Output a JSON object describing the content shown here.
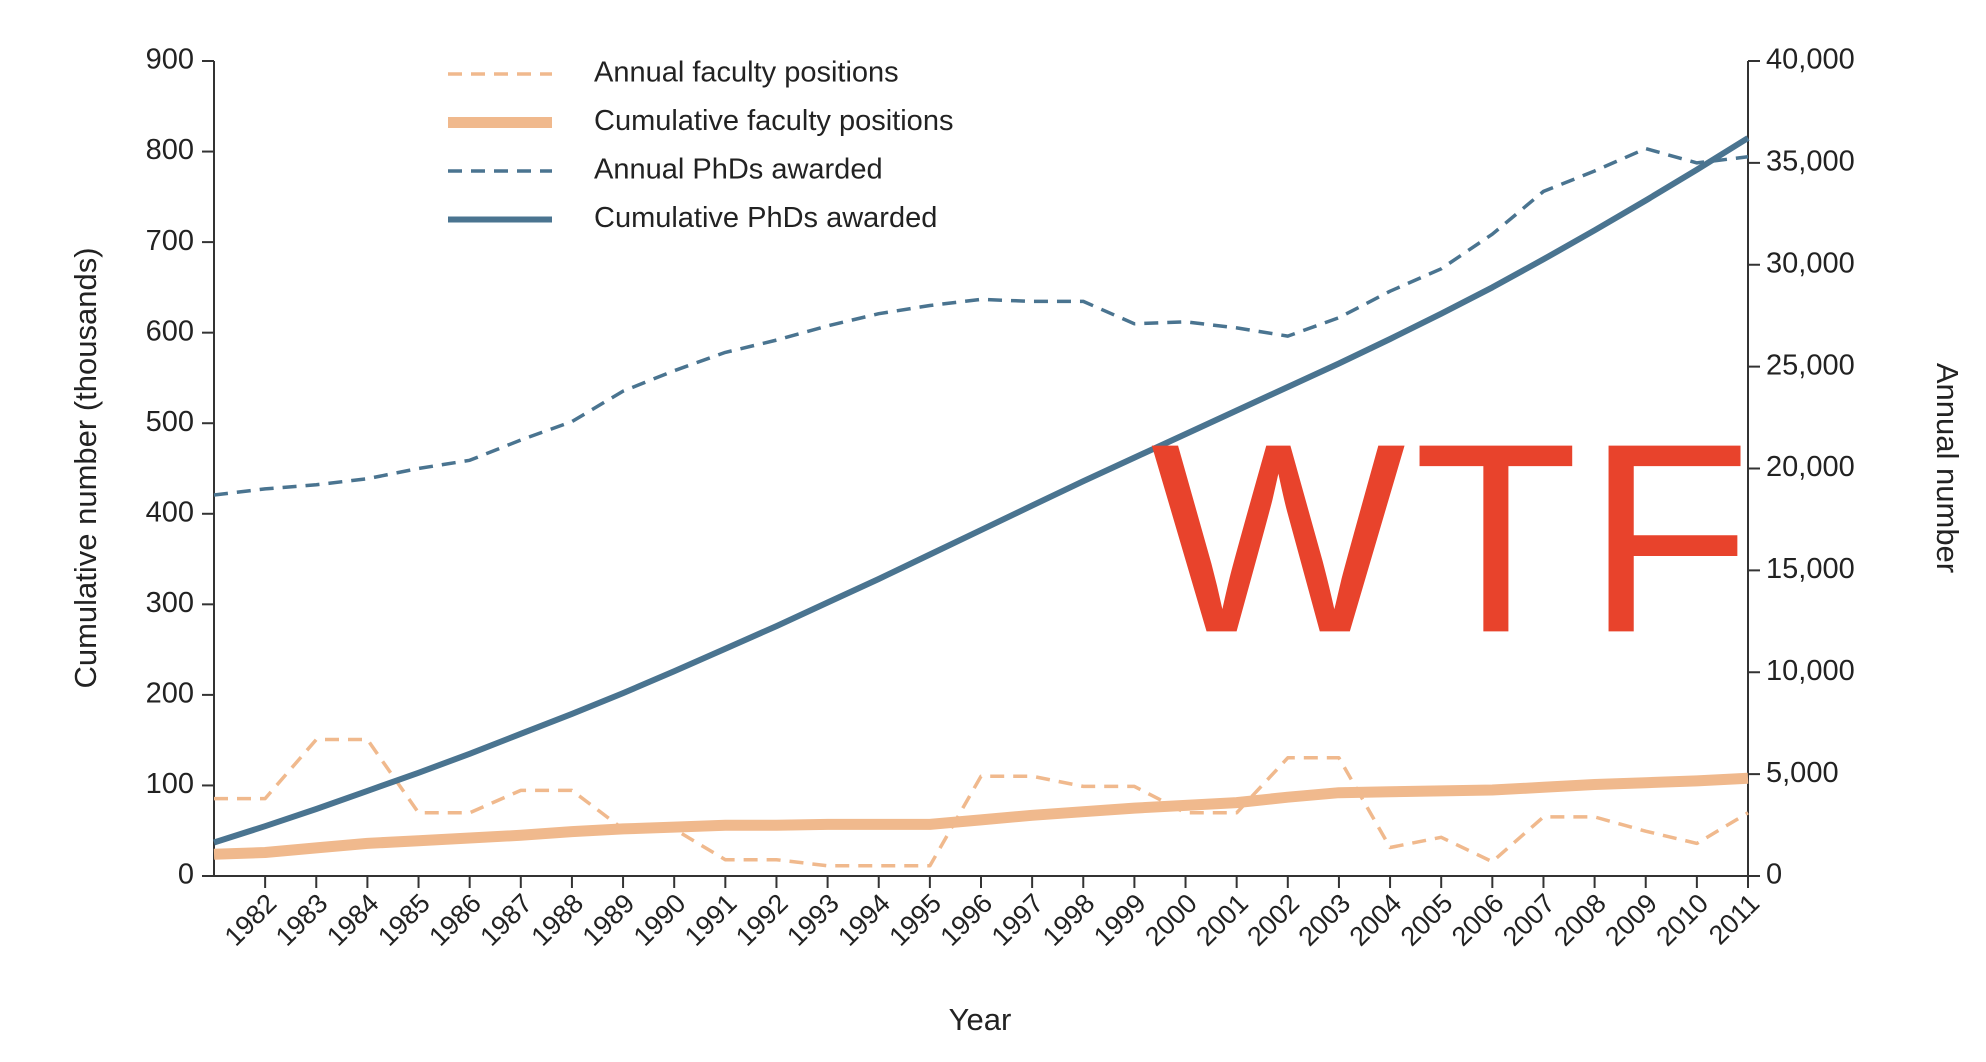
{
  "chart_data": {
    "type": "line",
    "x_label": "Year",
    "y_label": "Cumulative number (thousands)",
    "y2_label": "Annual number",
    "annotation": "WTF",
    "annotation_color": "#e8432c",
    "categories": [
      null,
      "1982",
      "1983",
      "1984",
      "1985",
      "1986",
      "1987",
      "1988",
      "1989",
      "1990",
      "1991",
      "1992",
      "1993",
      "1994",
      "1995",
      "1996",
      "1997",
      "1998",
      "1999",
      "2000",
      "2001",
      "2002",
      "2003",
      "2004",
      "2005",
      "2006",
      "2007",
      "2008",
      "2009",
      "2010",
      "2011"
    ],
    "ylim": [
      0,
      900
    ],
    "yticks": [
      0,
      100,
      200,
      300,
      400,
      500,
      600,
      700,
      800,
      900
    ],
    "y2lim": [
      0,
      40000
    ],
    "y2ticks": [
      0,
      {
        "value": 5000,
        "label": "5,000"
      },
      {
        "value": 10000,
        "label": "10,000"
      },
      {
        "value": 15000,
        "label": "15,000"
      },
      {
        "value": 20000,
        "label": "20,000"
      },
      {
        "value": 25000,
        "label": "25,000"
      },
      {
        "value": 30000,
        "label": "30,000"
      },
      {
        "value": 35000,
        "label": "35,000"
      },
      {
        "value": 40000,
        "label": "40,000"
      }
    ],
    "grid": false,
    "legend": "top-left",
    "series": [
      {
        "name": "Annual faculty positions",
        "color": "#f0b98d",
        "style": "dashed",
        "axis": "y2",
        "values": [
          3800,
          3800,
          6700,
          6700,
          3100,
          3100,
          4200,
          4200,
          2300,
          2300,
          800,
          800,
          500,
          500,
          500,
          4900,
          4900,
          4400,
          4400,
          3100,
          3100,
          5800,
          5800,
          1400,
          1900,
          700,
          2900,
          2900,
          2200,
          1600,
          3100
        ]
      },
      {
        "name": "Cumulative faculty positions",
        "color": "#f0b98d",
        "style": "solid",
        "values": [
          24,
          26,
          31,
          36,
          39,
          42,
          45,
          49,
          52,
          54,
          56,
          56,
          57,
          57,
          57,
          62,
          67,
          71,
          75,
          78,
          81,
          87,
          92,
          93,
          94,
          95,
          98,
          101,
          103,
          105,
          108
        ]
      },
      {
        "name": "Annual PhDs awarded",
        "color": "#4a7490",
        "style": "dashed",
        "axis": "y2",
        "values": [
          18700,
          19000,
          19200,
          19500,
          20000,
          20400,
          21400,
          22300,
          23800,
          24800,
          25700,
          26300,
          27000,
          27600,
          28000,
          28300,
          28200,
          28200,
          27100,
          27200,
          26900,
          26500,
          27400,
          28700,
          29800,
          31500,
          33600,
          34600,
          35700,
          35000,
          35300
        ]
      },
      {
        "name": "Cumulative PhDs awarded",
        "color": "#4a7490",
        "style": "solid",
        "values": [
          37,
          55,
          74,
          94,
          114,
          135,
          157,
          179,
          202,
          226,
          251,
          276,
          302,
          328,
          355,
          382,
          409,
          436,
          462,
          488,
          514,
          540,
          566,
          593,
          621,
          650,
          681,
          713,
          746,
          780,
          815
        ]
      }
    ]
  }
}
